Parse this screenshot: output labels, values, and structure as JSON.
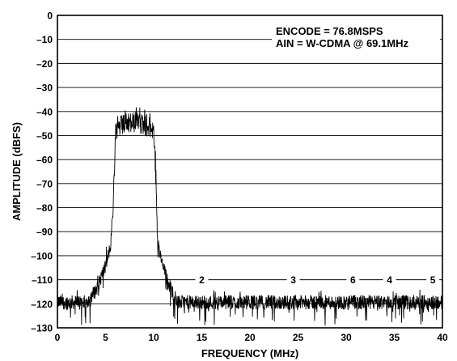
{
  "chart_data": {
    "type": "line",
    "title": "",
    "xlabel": "FREQUENCY (MHz)",
    "ylabel": "AMPLITUDE (dBFS)",
    "xlim": [
      0,
      40
    ],
    "ylim": [
      -130,
      0
    ],
    "x_ticks": [
      "0",
      "5",
      "10",
      "15",
      "20",
      "25",
      "30",
      "35",
      "40"
    ],
    "y_ticks": [
      "0",
      "–10",
      "–20",
      "–30",
      "–40",
      "–50",
      "–60",
      "–70",
      "–80",
      "–90",
      "–100",
      "–110",
      "–120",
      "–130"
    ],
    "grid": "horizontal",
    "annotations": [
      "ENCODE = 76.8MSPS",
      "AIN = W-CDMA @ 69.1MHz"
    ],
    "harmonic_markers": [
      {
        "label": "2",
        "x": 15.0,
        "y": -110
      },
      {
        "label": "3",
        "x": 24.5,
        "y": -110
      },
      {
        "label": "6",
        "x": 30.7,
        "y": -110
      },
      {
        "label": "4",
        "x": 34.5,
        "y": -110
      },
      {
        "label": "5",
        "x": 39.0,
        "y": -110
      }
    ],
    "series": [
      {
        "type": "fft-spectrum",
        "x": [
          0,
          3,
          4,
          5,
          5.5,
          5.8,
          6.0,
          6.3,
          7,
          8,
          9,
          10.0,
          10.2,
          10.4,
          10.8,
          11.5,
          12.5,
          20,
          30,
          40
        ],
        "y": [
          -120,
          -120,
          -115,
          -105,
          -97,
          -80,
          -46,
          -42,
          -41,
          -40,
          -41,
          -43,
          -60,
          -95,
          -103,
          -112,
          -120,
          -120,
          -120,
          -120
        ]
      }
    ]
  }
}
